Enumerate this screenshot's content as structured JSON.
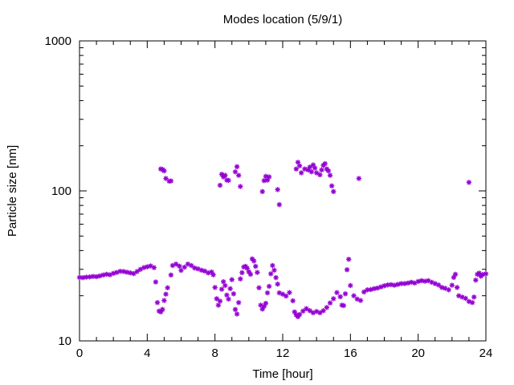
{
  "chart_data": {
    "type": "scatter",
    "title": "Modes location (5/9/1)",
    "xlabel": "Time [hour]",
    "ylabel": "Particle size [nm]",
    "xlim": [
      0,
      24
    ],
    "ylim": [
      10,
      1000
    ],
    "yscale": "log",
    "grid": false,
    "legend": "none",
    "x_ticks": [
      0,
      4,
      8,
      12,
      16,
      20,
      24
    ],
    "x_tick_labels": [
      "0",
      "4",
      "8",
      "12",
      "16",
      "20",
      "24"
    ],
    "y_ticks": [
      10,
      100,
      1000
    ],
    "y_tick_labels": [
      "10",
      "100",
      "1000"
    ],
    "marker": "star",
    "marker_color": "#9400d3",
    "series": [
      {
        "points": [
          [
            0.0,
            26.5
          ],
          [
            0.2,
            26.4
          ],
          [
            0.4,
            26.6
          ],
          [
            0.6,
            26.7
          ],
          [
            0.8,
            26.9
          ],
          [
            1.0,
            26.8
          ],
          [
            1.2,
            27.1
          ],
          [
            1.4,
            27.5
          ],
          [
            1.6,
            27.8
          ],
          [
            1.8,
            27.6
          ],
          [
            2.0,
            28.2
          ],
          [
            2.2,
            28.6
          ],
          [
            2.4,
            29.1
          ],
          [
            2.6,
            29.0
          ],
          [
            2.8,
            28.7
          ],
          [
            3.0,
            28.4
          ],
          [
            3.2,
            28.1
          ],
          [
            3.4,
            29.0
          ],
          [
            3.6,
            30.0
          ],
          [
            3.8,
            30.8
          ],
          [
            4.0,
            31.2
          ],
          [
            4.2,
            31.6
          ],
          [
            4.4,
            30.8
          ],
          [
            4.5,
            24.7
          ],
          [
            4.6,
            18.0
          ],
          [
            4.7,
            15.8
          ],
          [
            4.8,
            15.6
          ],
          [
            4.9,
            16.2
          ],
          [
            5.0,
            18.6
          ],
          [
            5.1,
            20.5
          ],
          [
            5.2,
            22.6
          ],
          [
            5.4,
            27.5
          ],
          [
            5.5,
            31.8
          ],
          [
            5.7,
            32.5
          ],
          [
            5.9,
            31.5
          ],
          [
            6.0,
            29.5
          ],
          [
            6.2,
            31.0
          ],
          [
            6.4,
            32.5
          ],
          [
            6.6,
            31.8
          ],
          [
            6.8,
            30.6
          ],
          [
            7.0,
            30.2
          ],
          [
            7.2,
            29.6
          ],
          [
            7.4,
            29.2
          ],
          [
            7.6,
            28.4
          ],
          [
            7.8,
            28.8
          ],
          [
            7.9,
            27.6
          ],
          [
            8.0,
            22.7
          ],
          [
            8.1,
            19.1
          ],
          [
            8.2,
            17.3
          ],
          [
            8.3,
            18.4
          ],
          [
            8.4,
            22.1
          ],
          [
            8.5,
            24.8
          ],
          [
            8.6,
            23.4
          ],
          [
            8.7,
            20.2
          ],
          [
            8.8,
            19.0
          ],
          [
            8.9,
            22.3
          ],
          [
            9.0,
            25.6
          ],
          [
            9.1,
            20.6
          ],
          [
            9.2,
            16.2
          ],
          [
            9.3,
            15.1
          ],
          [
            9.4,
            18.0
          ],
          [
            9.5,
            25.9
          ],
          [
            9.6,
            28.5
          ],
          [
            9.7,
            31.1
          ],
          [
            9.8,
            31.4
          ],
          [
            9.9,
            30.5
          ],
          [
            10.0,
            28.9
          ],
          [
            10.1,
            27.8
          ],
          [
            10.2,
            35.2
          ],
          [
            10.3,
            34.1
          ],
          [
            10.4,
            31.4
          ],
          [
            10.5,
            28.6
          ],
          [
            10.6,
            22.6
          ],
          [
            10.7,
            17.3
          ],
          [
            10.8,
            16.3
          ],
          [
            10.9,
            17.0
          ],
          [
            11.0,
            17.8
          ],
          [
            11.1,
            20.9
          ],
          [
            11.2,
            23.1
          ],
          [
            11.3,
            28.0
          ],
          [
            11.4,
            31.8
          ],
          [
            11.5,
            29.6
          ],
          [
            11.6,
            26.4
          ],
          [
            11.7,
            23.9
          ],
          [
            11.8,
            20.9
          ],
          [
            12.0,
            20.5
          ],
          [
            12.2,
            19.9
          ],
          [
            12.4,
            21.0
          ],
          [
            12.6,
            18.5
          ],
          [
            12.7,
            15.6
          ],
          [
            12.8,
            14.9
          ],
          [
            12.9,
            14.5
          ],
          [
            13.0,
            15.0
          ],
          [
            13.2,
            15.8
          ],
          [
            13.4,
            16.4
          ],
          [
            13.6,
            15.9
          ],
          [
            13.8,
            15.4
          ],
          [
            14.0,
            15.7
          ],
          [
            14.2,
            15.4
          ],
          [
            14.4,
            15.9
          ],
          [
            14.6,
            16.7
          ],
          [
            14.8,
            17.9
          ],
          [
            15.0,
            19.1
          ],
          [
            15.2,
            21.0
          ],
          [
            15.4,
            19.7
          ],
          [
            15.5,
            17.3
          ],
          [
            15.6,
            17.2
          ],
          [
            15.7,
            20.6
          ],
          [
            15.8,
            29.8
          ],
          [
            15.9,
            35.0
          ],
          [
            16.0,
            23.4
          ],
          [
            16.2,
            20.0
          ],
          [
            16.4,
            19.0
          ],
          [
            16.6,
            18.6
          ],
          [
            16.8,
            21.2
          ],
          [
            17.0,
            21.9
          ],
          [
            17.2,
            22.0
          ],
          [
            17.4,
            22.3
          ],
          [
            17.6,
            22.5
          ],
          [
            17.8,
            22.9
          ],
          [
            18.0,
            23.3
          ],
          [
            18.2,
            23.6
          ],
          [
            18.4,
            23.7
          ],
          [
            18.6,
            23.5
          ],
          [
            18.8,
            23.8
          ],
          [
            19.0,
            24.1
          ],
          [
            19.2,
            24.1
          ],
          [
            19.4,
            24.3
          ],
          [
            19.6,
            24.6
          ],
          [
            19.8,
            24.3
          ],
          [
            20.0,
            24.9
          ],
          [
            20.2,
            25.2
          ],
          [
            20.4,
            25.0
          ],
          [
            20.6,
            25.2
          ],
          [
            20.8,
            24.6
          ],
          [
            21.0,
            24.1
          ],
          [
            21.2,
            23.6
          ],
          [
            21.4,
            22.7
          ],
          [
            21.6,
            22.4
          ],
          [
            21.8,
            21.9
          ],
          [
            22.0,
            23.5
          ],
          [
            22.1,
            26.5
          ],
          [
            22.2,
            27.8
          ],
          [
            22.3,
            22.7
          ],
          [
            22.4,
            20.0
          ],
          [
            22.6,
            19.6
          ],
          [
            22.8,
            19.2
          ],
          [
            23.0,
            18.3
          ],
          [
            23.2,
            18.0
          ],
          [
            23.3,
            19.6
          ],
          [
            23.4,
            25.4
          ],
          [
            23.5,
            27.8
          ],
          [
            23.6,
            28.3
          ],
          [
            23.7,
            27.0
          ],
          [
            23.8,
            27.7
          ],
          [
            24.0,
            28.0
          ],
          [
            4.8,
            140.0
          ],
          [
            4.9,
            139.0
          ],
          [
            5.0,
            136.0
          ],
          [
            5.1,
            121.0
          ],
          [
            5.3,
            116.0
          ],
          [
            5.4,
            116.5
          ],
          [
            8.3,
            109.0
          ],
          [
            8.4,
            129.0
          ],
          [
            8.5,
            124.0
          ],
          [
            8.6,
            127.0
          ],
          [
            8.7,
            118.0
          ],
          [
            8.8,
            117.5
          ],
          [
            9.2,
            134.0
          ],
          [
            9.3,
            145.0
          ],
          [
            9.4,
            127.0
          ],
          [
            9.5,
            107.0
          ],
          [
            10.8,
            99.0
          ],
          [
            10.9,
            117.0
          ],
          [
            11.0,
            125.0
          ],
          [
            11.1,
            118.0
          ],
          [
            11.2,
            124.0
          ],
          [
            11.7,
            102.0
          ],
          [
            11.8,
            81.0
          ],
          [
            12.8,
            140.0
          ],
          [
            12.9,
            155.0
          ],
          [
            13.0,
            147.0
          ],
          [
            13.1,
            132.0
          ],
          [
            13.3,
            140.0
          ],
          [
            13.5,
            138.0
          ],
          [
            13.6,
            144.0
          ],
          [
            13.7,
            134.0
          ],
          [
            13.8,
            149.0
          ],
          [
            13.9,
            142.0
          ],
          [
            14.0,
            132.0
          ],
          [
            14.2,
            128.0
          ],
          [
            14.3,
            138.0
          ],
          [
            14.4,
            148.0
          ],
          [
            14.5,
            152.0
          ],
          [
            14.6,
            140.0
          ],
          [
            14.7,
            136.0
          ],
          [
            14.8,
            127.0
          ],
          [
            14.9,
            108.0
          ],
          [
            15.0,
            99.0
          ],
          [
            16.5,
            121.0
          ],
          [
            23.0,
            114.0
          ]
        ]
      }
    ]
  }
}
